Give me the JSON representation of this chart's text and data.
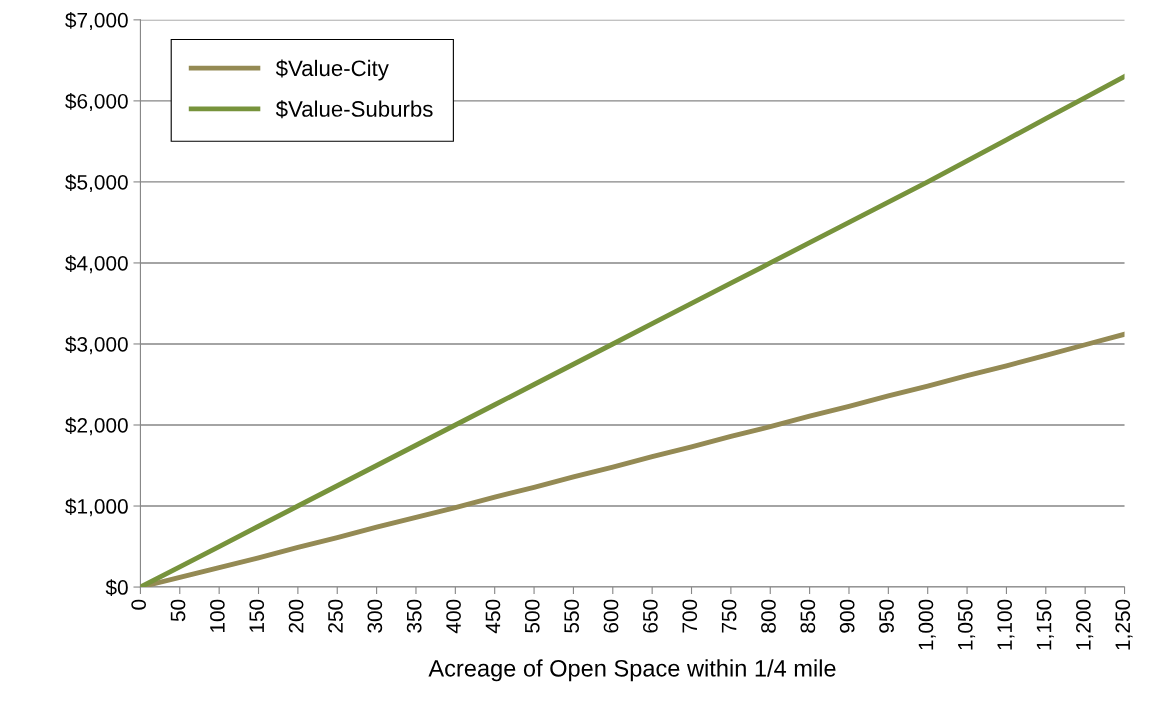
{
  "chart_data": {
    "type": "line",
    "xlabel": "Acreage of Open Space within 1/4 mile",
    "categories": [
      "0",
      "50",
      "100",
      "150",
      "200",
      "250",
      "300",
      "350",
      "400",
      "450",
      "500",
      "550",
      "600",
      "650",
      "700",
      "750",
      "800",
      "850",
      "900",
      "950",
      "1,000",
      "1,050",
      "1,100",
      "1,150",
      "1,200",
      "1,250"
    ],
    "series": [
      {
        "name": "$Value-City",
        "color": "#948a54",
        "values": [
          0,
          120,
          240,
          360,
          490,
          610,
          740,
          860,
          980,
          1110,
          1230,
          1360,
          1480,
          1610,
          1730,
          1860,
          1980,
          2110,
          2230,
          2360,
          2480,
          2610,
          2730,
          2860,
          2990,
          3120
        ]
      },
      {
        "name": "$Value-Suburbs",
        "color": "#77933c",
        "values": [
          0,
          250,
          500,
          750,
          1000,
          1250,
          1500,
          1750,
          2000,
          2250,
          2500,
          2750,
          3000,
          3250,
          3500,
          3750,
          4000,
          4250,
          4500,
          4750,
          5000,
          5260,
          5520,
          5780,
          6040,
          6300
        ]
      }
    ],
    "ylim": [
      0,
      7000
    ],
    "yticks": [
      {
        "value": 0,
        "label": "$0"
      },
      {
        "value": 1000,
        "label": "$1,000"
      },
      {
        "value": 2000,
        "label": "$2,000"
      },
      {
        "value": 3000,
        "label": "$3,000"
      },
      {
        "value": 4000,
        "label": "$4,000"
      },
      {
        "value": 5000,
        "label": "$5,000"
      },
      {
        "value": 6000,
        "label": "$6,000"
      },
      {
        "value": 7000,
        "label": "$7,000"
      }
    ],
    "grid": "y",
    "legend": "top left",
    "marker": "none",
    "line_style": "solid"
  }
}
